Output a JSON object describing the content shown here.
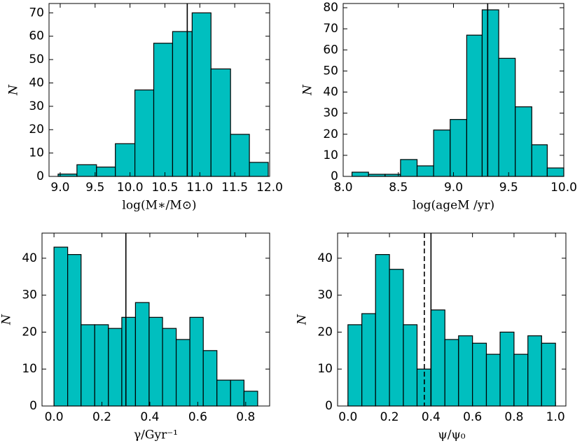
{
  "chart_data": [
    {
      "type": "histogram",
      "xlabel": "log(M∗/M⊙)",
      "ylabel": "N",
      "color": "#00bfbf",
      "bins": [
        8.97,
        9.24,
        9.52,
        9.79,
        10.07,
        10.34,
        10.61,
        10.89,
        11.16,
        11.44,
        11.71,
        11.98
      ],
      "counts": [
        1,
        5,
        4,
        14,
        37,
        57,
        62,
        70,
        46,
        18,
        6
      ],
      "xlim": [
        8.84,
        12.0
      ],
      "xticks": [
        {
          "value": 9,
          "label": "9.0"
        },
        9.5,
        {
          "value": 10,
          "label": "10.0"
        },
        10.5,
        {
          "value": 11,
          "label": "11.0"
        },
        11.5,
        {
          "value": 12,
          "label": "12.0"
        }
      ],
      "ylim": [
        0,
        74
      ],
      "yticks": [
        0,
        10,
        20,
        30,
        40,
        50,
        60,
        70
      ],
      "vlines": [
        {
          "x": 10.82,
          "style": "solid"
        }
      ]
    },
    {
      "type": "histogram",
      "xlabel": "log(ageM /yr)",
      "ylabel": "N",
      "color": "#00bfbf",
      "bins": [
        8.08,
        8.23,
        8.38,
        8.52,
        8.67,
        8.82,
        8.97,
        9.12,
        9.26,
        9.41,
        9.56,
        9.71,
        9.85,
        10.0
      ],
      "counts": [
        2,
        1,
        1,
        8,
        5,
        22,
        27,
        67,
        79,
        56,
        33,
        15,
        4
      ],
      "xlim": [
        8.0,
        10.0
      ],
      "xticks": [
        {
          "value": 8,
          "label": "8.0"
        },
        8.5,
        {
          "value": 9,
          "label": "9.0"
        },
        9.5,
        {
          "value": 10,
          "label": "10.0"
        }
      ],
      "ylim": [
        0,
        82
      ],
      "yticks": [
        0,
        10,
        20,
        30,
        40,
        50,
        60,
        70,
        80
      ],
      "vlines": [
        {
          "x": 9.31,
          "style": "solid"
        }
      ]
    },
    {
      "type": "histogram",
      "xlabel": "γ/Gyr⁻¹",
      "ylabel": "N",
      "color": "#00bfbf",
      "bins": [
        0,
        0.057,
        0.113,
        0.17,
        0.227,
        0.283,
        0.34,
        0.397,
        0.453,
        0.51,
        0.567,
        0.623,
        0.68,
        0.737,
        0.793,
        0.85
      ],
      "counts": [
        43,
        41,
        22,
        22,
        21,
        24,
        28,
        24,
        21,
        18,
        24,
        15,
        7,
        7,
        4
      ],
      "xlim": [
        -0.05,
        0.9
      ],
      "xticks": [
        {
          "value": 0,
          "label": "0.0"
        },
        0.2,
        0.4,
        0.6,
        0.8
      ],
      "ylim": [
        0,
        46.8
      ],
      "yticks": [
        0,
        10,
        20,
        30,
        40
      ],
      "vlines": [
        {
          "x": 0.3,
          "style": "solid"
        }
      ]
    },
    {
      "type": "histogram",
      "xlabel": "ψ/ψ₀",
      "ylabel": "N",
      "color": "#00bfbf",
      "bins": [
        0,
        0.067,
        0.133,
        0.2,
        0.267,
        0.333,
        0.4,
        0.467,
        0.533,
        0.6,
        0.667,
        0.733,
        0.8,
        0.867,
        0.933,
        1.0
      ],
      "counts": [
        22,
        25,
        41,
        37,
        22,
        10,
        26,
        18,
        19,
        17,
        14,
        20,
        14,
        19,
        17
      ],
      "xlim": [
        -0.05,
        1.05
      ],
      "xticks": [
        {
          "value": 0,
          "label": "0.0"
        },
        0.2,
        0.4,
        0.6,
        0.8,
        {
          "value": 1,
          "label": "1.0"
        }
      ],
      "ylim": [
        0,
        46.8
      ],
      "yticks": [
        0,
        10,
        20,
        30,
        40
      ],
      "vlines": [
        {
          "x": 0.368,
          "style": "dashed"
        },
        {
          "x": 0.4,
          "style": "solid"
        }
      ]
    }
  ]
}
